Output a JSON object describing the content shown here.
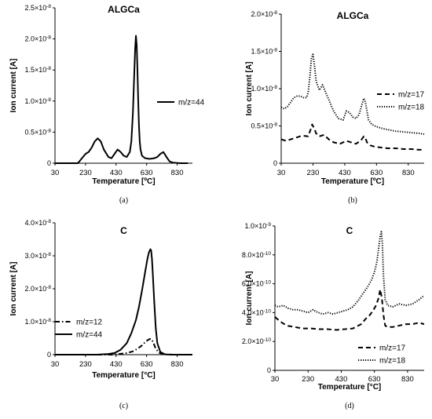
{
  "chart_data": [
    {
      "panel": "(a)",
      "type": "line",
      "title": "ALGCa",
      "xlabel": "Temperature [ºC]",
      "ylabel": "Ion current [A]",
      "xlim": [
        30,
        930
      ],
      "ylim": [
        0,
        2.5e-08
      ],
      "x_ticks": [
        30,
        230,
        430,
        630,
        830
      ],
      "y_ticks": [
        {
          "v": 0,
          "label": "0"
        },
        {
          "v": 5e-09,
          "label": "0.5×10-8"
        },
        {
          "v": 1e-08,
          "label": "1.0×10-8"
        },
        {
          "v": 1.5e-08,
          "label": "1.5×10-8"
        },
        {
          "v": 2e-08,
          "label": "2.0×10-8"
        },
        {
          "v": 2.5e-08,
          "label": "2.5×10-8"
        }
      ],
      "legend_position": "right",
      "series": [
        {
          "name": "m/z=44",
          "style": "solid",
          "x": [
            30,
            100,
            180,
            230,
            250,
            270,
            290,
            310,
            330,
            350,
            380,
            400,
            420,
            440,
            460,
            480,
            500,
            520,
            530,
            540,
            550,
            555,
            560,
            565,
            570,
            575,
            580,
            585,
            590,
            600,
            620,
            650,
            680,
            700,
            720,
            740,
            760,
            780,
            800,
            850,
            900
          ],
          "y": [
            0,
            0,
            0,
            1.5e-09,
            1.8e-09,
            2.5e-09,
            3.5e-09,
            4e-09,
            3.5e-09,
            2.2e-09,
            1e-09,
            8e-10,
            1.5e-09,
            2.2e-09,
            1.8e-09,
            1.2e-09,
            1e-09,
            1.8e-09,
            3.5e-09,
            8e-09,
            1.5e-08,
            1.85e-08,
            2.05e-08,
            1.9e-08,
            1.5e-08,
            1e-08,
            6e-09,
            3.5e-09,
            2.2e-09,
            1.2e-09,
            8e-10,
            7e-10,
            8e-10,
            1e-09,
            1.5e-09,
            1.8e-09,
            1e-09,
            3e-10,
            1e-10,
            0,
            0
          ]
        }
      ]
    },
    {
      "panel": "(b)",
      "type": "line",
      "title": "ALGCa",
      "xlabel": "Temperature [ºC]",
      "ylabel": "Ion current [A]",
      "xlim": [
        30,
        930
      ],
      "ylim": [
        0,
        2e-08
      ],
      "x_ticks": [
        30,
        230,
        430,
        630,
        830
      ],
      "y_ticks": [
        {
          "v": 0,
          "label": "0"
        },
        {
          "v": 5e-09,
          "label": "0.5×10-8"
        },
        {
          "v": 1e-08,
          "label": "1.0×10-8"
        },
        {
          "v": 1.5e-08,
          "label": "1.5×10-8"
        },
        {
          "v": 2e-08,
          "label": "2.0×10-8"
        }
      ],
      "legend_position": "right",
      "series": [
        {
          "name": "m/z=17",
          "style": "dashed",
          "x": [
            30,
            60,
            90,
            120,
            160,
            200,
            215,
            225,
            235,
            250,
            270,
            300,
            330,
            360,
            400,
            440,
            470,
            500,
            530,
            550,
            560,
            570,
            590,
            620,
            660,
            700,
            750,
            800,
            850,
            900,
            930
          ],
          "y": [
            3.2e-09,
            3e-09,
            3.2e-09,
            3.4e-09,
            3.7e-09,
            3.6e-09,
            4.5e-09,
            5.2e-09,
            4.8e-09,
            4e-09,
            3.6e-09,
            3.8e-09,
            3.2e-09,
            2.8e-09,
            2.6e-09,
            3e-09,
            2.8e-09,
            2.6e-09,
            3e-09,
            3.6e-09,
            3.4e-09,
            2.8e-09,
            2.4e-09,
            2.2e-09,
            2.1e-09,
            2e-09,
            2e-09,
            1.9e-09,
            1.9e-09,
            1.8e-09,
            1.8e-09
          ]
        },
        {
          "name": "m/z=18",
          "style": "dotted",
          "x": [
            30,
            50,
            70,
            90,
            110,
            130,
            150,
            170,
            190,
            200,
            210,
            220,
            230,
            240,
            250,
            270,
            290,
            310,
            330,
            360,
            390,
            420,
            440,
            460,
            480,
            500,
            520,
            540,
            550,
            560,
            570,
            580,
            600,
            630,
            660,
            700,
            750,
            800,
            850,
            900,
            930
          ],
          "y": [
            7.5e-09,
            7.3e-09,
            7.6e-09,
            8.2e-09,
            8.8e-09,
            9e-09,
            9e-09,
            8.8e-09,
            8.8e-09,
            9.5e-09,
            1.15e-08,
            1.4e-08,
            1.46e-08,
            1.3e-08,
            1.1e-08,
            9.8e-09,
            1.05e-08,
            9.5e-09,
            8.5e-09,
            7e-09,
            6e-09,
            5.8e-09,
            7e-09,
            6.8e-09,
            6.2e-09,
            6e-09,
            6.5e-09,
            8e-09,
            8.7e-09,
            8.2e-09,
            7e-09,
            5.8e-09,
            5.2e-09,
            4.9e-09,
            4.7e-09,
            4.5e-09,
            4.3e-09,
            4.2e-09,
            4.1e-09,
            4e-09,
            3.9e-09
          ]
        }
      ]
    },
    {
      "panel": "(c)",
      "type": "line",
      "title": "C",
      "xlabel": "Temperature [°C]",
      "ylabel": "Ion current [A]",
      "xlim": [
        30,
        930
      ],
      "ylim": [
        0,
        4e-08
      ],
      "x_ticks": [
        30,
        230,
        430,
        630,
        830
      ],
      "y_ticks": [
        {
          "v": 0,
          "label": "0"
        },
        {
          "v": 1e-08,
          "label": "1.0×10-8"
        },
        {
          "v": 2e-08,
          "label": "2.0×10-8"
        },
        {
          "v": 3e-08,
          "label": "3.0×10-8"
        },
        {
          "v": 4e-08,
          "label": "4.0×10-8"
        }
      ],
      "legend_position": "left",
      "series": [
        {
          "name": "m/z=12",
          "style": "dashdot",
          "x": [
            30,
            300,
            400,
            450,
            500,
            540,
            570,
            600,
            620,
            640,
            655,
            665,
            675,
            690,
            710,
            740,
            800,
            900,
            930
          ],
          "y": [
            0,
            0,
            0,
            2e-10,
            5e-10,
            1e-09,
            1.8e-09,
            2.8e-09,
            3.8e-09,
            4.5e-09,
            4.8e-09,
            4.5e-09,
            3.5e-09,
            1.8e-09,
            6e-10,
            1e-10,
            0,
            0,
            0
          ]
        },
        {
          "name": "m/z=44",
          "style": "solid",
          "x": [
            30,
            300,
            380,
            420,
            460,
            500,
            530,
            560,
            580,
            600,
            620,
            635,
            645,
            655,
            660,
            665,
            670,
            680,
            690,
            700,
            720,
            750,
            800,
            900,
            930
          ],
          "y": [
            0,
            0,
            2e-10,
            5e-10,
            1.5e-09,
            3.5e-09,
            6.5e-09,
            1.05e-08,
            1.45e-08,
            1.95e-08,
            2.5e-08,
            2.9e-08,
            3.1e-08,
            3.2e-08,
            3.15e-08,
            2.9e-08,
            2.5e-08,
            1.6e-08,
            8e-09,
            3.5e-09,
            8e-10,
            1e-10,
            0,
            0,
            0
          ]
        }
      ]
    },
    {
      "panel": "(d)",
      "type": "line",
      "title": "C",
      "xlabel": "Temperature [°C]",
      "ylabel": "Ion current [A]",
      "xlim": [
        30,
        930
      ],
      "ylim": [
        0,
        1e-09
      ],
      "x_ticks": [
        30,
        230,
        430,
        630,
        830
      ],
      "y_ticks": [
        {
          "v": 0,
          "label": "0"
        },
        {
          "v": 2e-10,
          "label": "2.0×10-10"
        },
        {
          "v": 4e-10,
          "label": "4.0×10-10"
        },
        {
          "v": 6e-10,
          "label": "6.0×10-10"
        },
        {
          "v": 8e-10,
          "label": "8.0×10-10"
        },
        {
          "v": 1e-09,
          "label": "1.0×10-9"
        }
      ],
      "legend_position": "bottom-right",
      "series": [
        {
          "name": "m/z=17",
          "style": "dashed",
          "x": [
            30,
            60,
            100,
            150,
            200,
            250,
            300,
            350,
            400,
            450,
            500,
            550,
            580,
            600,
            620,
            640,
            655,
            665,
            675,
            685,
            695,
            710,
            740,
            780,
            820,
            860,
            900,
            930
          ],
          "y": [
            3.7e-10,
            3.4e-10,
            3.1e-10,
            3e-10,
            2.9e-10,
            2.9e-10,
            2.85e-10,
            2.85e-10,
            2.8e-10,
            2.85e-10,
            2.9e-10,
            3.2e-10,
            3.6e-10,
            3.8e-10,
            4.1e-10,
            4.5e-10,
            5e-10,
            5.6e-10,
            5e-10,
            3.8e-10,
            3.1e-10,
            3e-10,
            3e-10,
            3.1e-10,
            3.2e-10,
            3.2e-10,
            3.3e-10,
            3.2e-10
          ]
        },
        {
          "name": "m/z=18",
          "style": "dotted",
          "x": [
            30,
            50,
            80,
            110,
            140,
            170,
            200,
            230,
            260,
            290,
            320,
            350,
            380,
            410,
            440,
            470,
            500,
            530,
            560,
            590,
            610,
            630,
            645,
            655,
            665,
            672,
            678,
            685,
            695,
            710,
            740,
            780,
            820,
            860,
            900,
            930
          ],
          "y": [
            4.5e-10,
            4.4e-10,
            4.5e-10,
            4.3e-10,
            4.2e-10,
            4.2e-10,
            4.1e-10,
            4e-10,
            4.2e-10,
            4e-10,
            3.9e-10,
            4e-10,
            3.9e-10,
            4e-10,
            4.1e-10,
            4.2e-10,
            4.4e-10,
            4.8e-10,
            5.3e-10,
            5.8e-10,
            6.2e-10,
            6.8e-10,
            7.5e-10,
            8.4e-10,
            9.3e-10,
            9.6e-10,
            8.8e-10,
            6.5e-10,
            4.9e-10,
            4.5e-10,
            4.4e-10,
            4.6e-10,
            4.5e-10,
            4.6e-10,
            4.9e-10,
            5.2e-10
          ]
        }
      ]
    }
  ]
}
